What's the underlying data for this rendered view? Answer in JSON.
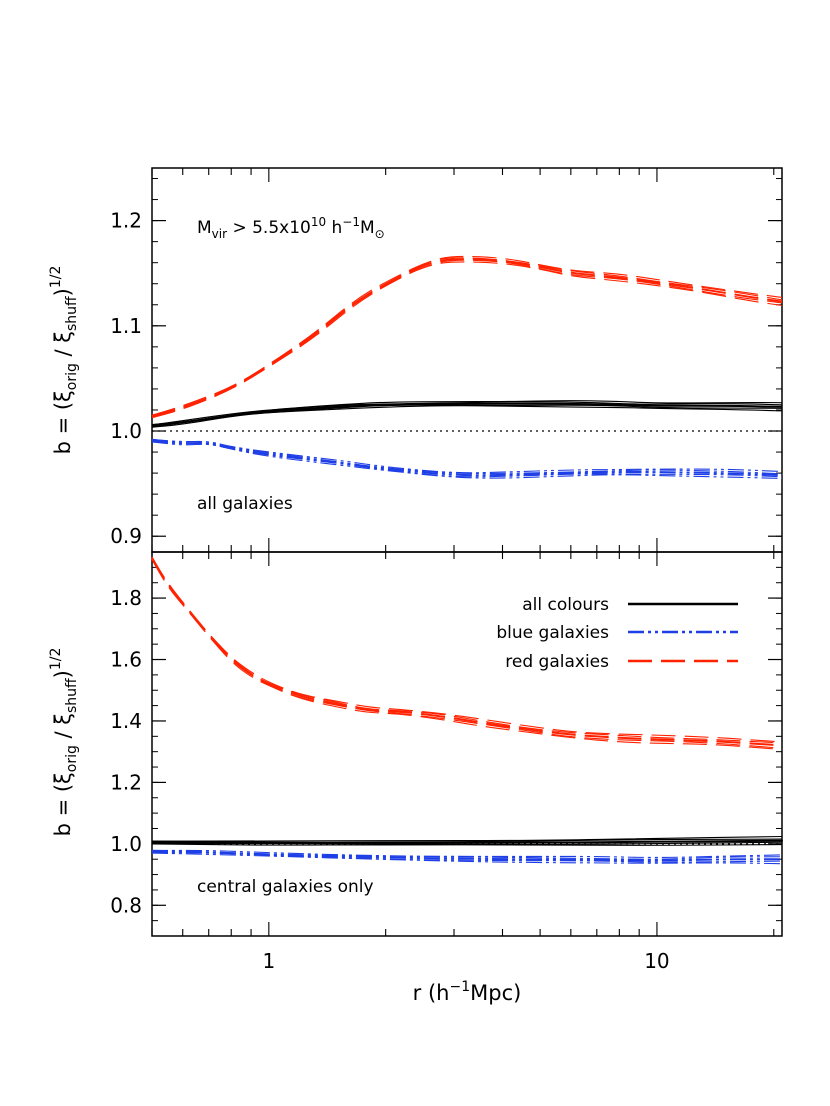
{
  "chart_data": [
    {
      "type": "line",
      "panel": "top",
      "xscale": "log",
      "xlim": [
        0.5,
        21
      ],
      "ylim": [
        0.885,
        1.25
      ],
      "ylabel": {
        "pre": "b = (ξ",
        "sub1": "orig",
        "mid": " / ξ",
        "sub2": "shuff",
        "post": ")",
        "sup": "1/2"
      },
      "yticks": [
        0.9,
        1.0,
        1.1,
        1.2
      ],
      "ytick_labels": [
        "0.9",
        "1.0",
        "1.1",
        "1.2"
      ],
      "reference_line": 1.0,
      "annotations": {
        "mass_cut": {
          "m": "M",
          "vir": "vir",
          "op": " > 5.5x10",
          "exp": "10",
          "h": " h",
          "hexp": "−1",
          "m2": "M",
          "sun": "⊙"
        },
        "label": "all galaxies"
      },
      "series": [
        {
          "name": "all colours",
          "color": "#000000",
          "style": "solid",
          "x": [
            0.5,
            0.6,
            0.8,
            1.0,
            1.5,
            2.0,
            3.0,
            4.0,
            6.0,
            8.0,
            10.0,
            15.0,
            21.0
          ],
          "y": [
            1.005,
            1.008,
            1.015,
            1.019,
            1.023,
            1.025,
            1.026,
            1.026,
            1.026,
            1.025,
            1.024,
            1.024,
            1.023
          ]
        },
        {
          "name": "blue galaxies",
          "color": "#1f3fe6",
          "style": "dashdotdot",
          "x": [
            0.5,
            0.6,
            0.7,
            0.8,
            1.0,
            1.5,
            2.0,
            3.0,
            4.0,
            6.0,
            8.0,
            10.0,
            15.0,
            21.0
          ],
          "y": [
            0.991,
            0.988,
            0.989,
            0.984,
            0.978,
            0.97,
            0.964,
            0.958,
            0.958,
            0.96,
            0.961,
            0.961,
            0.96,
            0.958
          ]
        },
        {
          "name": "red galaxies",
          "color": "#ff2200",
          "style": "dashed",
          "x": [
            0.5,
            0.6,
            0.8,
            1.0,
            1.3,
            1.7,
            2.2,
            2.6,
            3.0,
            4.0,
            5.0,
            6.0,
            8.0,
            10.0,
            13.0,
            17.0,
            21.0
          ],
          "y": [
            1.014,
            1.022,
            1.04,
            1.062,
            1.09,
            1.125,
            1.148,
            1.16,
            1.164,
            1.162,
            1.156,
            1.15,
            1.146,
            1.141,
            1.135,
            1.128,
            1.123
          ]
        }
      ]
    },
    {
      "type": "line",
      "panel": "bottom",
      "xscale": "log",
      "xlim": [
        0.5,
        21
      ],
      "ylim": [
        0.7,
        1.95
      ],
      "xlabel": {
        "pre": "r (h",
        "sup": "−1",
        "post": "Mpc)"
      },
      "xticks": [
        1,
        10
      ],
      "xtick_labels": [
        "1",
        "10"
      ],
      "ylabel": {
        "pre": "b = (ξ",
        "sub1": "orig",
        "mid": " / ξ",
        "sub2": "shuff",
        "post": ")",
        "sup": "1/2"
      },
      "yticks": [
        0.8,
        1.0,
        1.2,
        1.4,
        1.6,
        1.8
      ],
      "ytick_labels": [
        "0.8",
        "1.0",
        "1.2",
        "1.4",
        "1.6",
        "1.8"
      ],
      "reference_line": 1.0,
      "annotations": {
        "label": "central galaxies only"
      },
      "legend": {
        "position": "top-right",
        "entries": [
          "all colours",
          "blue galaxies",
          "red galaxies"
        ]
      },
      "series": [
        {
          "name": "all colours",
          "color": "#000000",
          "style": "solid",
          "x": [
            0.5,
            1.0,
            2.0,
            5.0,
            10.0,
            21.0
          ],
          "y": [
            1.005,
            1.002,
            1.003,
            1.004,
            1.007,
            1.01
          ]
        },
        {
          "name": "blue galaxies",
          "color": "#1f3fe6",
          "style": "dashdotdot",
          "x": [
            0.5,
            0.7,
            1.0,
            2.0,
            4.0,
            7.0,
            10.0,
            15.0,
            21.0
          ],
          "y": [
            0.975,
            0.972,
            0.965,
            0.955,
            0.95,
            0.948,
            0.945,
            0.95,
            0.95
          ]
        },
        {
          "name": "red galaxies",
          "color": "#ff2200",
          "style": "dashed",
          "x": [
            0.5,
            0.55,
            0.62,
            0.7,
            0.8,
            0.9,
            1.0,
            1.2,
            1.5,
            1.8,
            2.2,
            2.8,
            3.5,
            4.5,
            6.0,
            8.0,
            10.0,
            14.0,
            21.0
          ],
          "y": [
            1.93,
            1.84,
            1.76,
            1.68,
            1.6,
            1.55,
            1.52,
            1.48,
            1.455,
            1.435,
            1.43,
            1.415,
            1.395,
            1.375,
            1.355,
            1.345,
            1.34,
            1.335,
            1.32
          ]
        }
      ]
    }
  ]
}
